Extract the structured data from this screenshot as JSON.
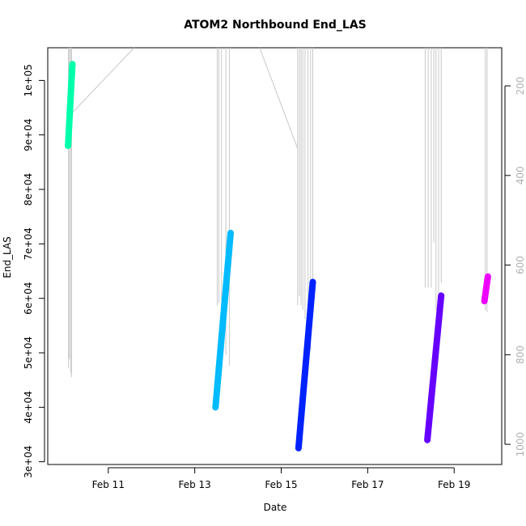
{
  "chart_data": {
    "type": "scatter",
    "title": "ATOM2 Northbound End_LAS",
    "xlabel": "Date",
    "ylabel": "End_LAS",
    "x_ticks": [
      "Feb 11",
      "Feb 13",
      "Feb 15",
      "Feb 17",
      "Feb 19"
    ],
    "x_tick_days": [
      11,
      13,
      15,
      17,
      19
    ],
    "xlim_days": [
      9.6,
      20.1
    ],
    "y_ticks": [
      "3e+04",
      "4e+04",
      "5e+04",
      "6e+04",
      "7e+04",
      "8e+04",
      "9e+04",
      "1e+05"
    ],
    "y_tick_values": [
      30000,
      40000,
      50000,
      60000,
      70000,
      80000,
      90000,
      100000
    ],
    "ylim": [
      29500,
      106000
    ],
    "y2_ticks": [
      "200",
      "400",
      "600",
      "800",
      "1000"
    ],
    "y2_tick_values": [
      200,
      400,
      600,
      800,
      1000
    ],
    "y2lim": [
      1045,
      115
    ],
    "y2_color": "#b0b0b0",
    "series": [
      {
        "color": "#00ffaa",
        "x_days": [
          10.07,
          10.17
        ],
        "y": [
          88000,
          103000
        ]
      },
      {
        "color": "#00bbff",
        "x_days": [
          13.48,
          13.83
        ],
        "y": [
          40000,
          72000
        ]
      },
      {
        "color": "#0022ff",
        "x_days": [
          15.4,
          15.73
        ],
        "y": [
          32500,
          63000
        ]
      },
      {
        "color": "#6600ff",
        "x_days": [
          18.38,
          18.7
        ],
        "y": [
          34000,
          60500
        ]
      },
      {
        "color": "#ee00ff",
        "x_days": [
          19.7,
          19.78
        ],
        "y": [
          59500,
          64000
        ]
      }
    ],
    "gray_series": {
      "color": "#c8c8c8",
      "axis": "y2",
      "spikes": [
        {
          "x_days": 10.08,
          "y2_low": 830
        },
        {
          "x_days": 10.1,
          "y2_low": 810
        },
        {
          "x_days": 10.13,
          "y2_low": 840
        },
        {
          "x_days": 10.15,
          "y2_low": 850
        },
        {
          "x_days": 13.52,
          "y2_low": 690
        },
        {
          "x_days": 13.56,
          "y2_low": 685
        },
        {
          "x_days": 13.62,
          "y2_low": 700
        },
        {
          "x_days": 13.72,
          "y2_low": 800
        },
        {
          "x_days": 13.8,
          "y2_low": 825
        },
        {
          "x_days": 15.38,
          "y2_low": 690
        },
        {
          "x_days": 15.42,
          "y2_low": 670
        },
        {
          "x_days": 15.46,
          "y2_low": 690
        },
        {
          "x_days": 15.5,
          "y2_low": 700
        },
        {
          "x_days": 15.55,
          "y2_low": 720
        },
        {
          "x_days": 15.62,
          "y2_low": 760
        },
        {
          "x_days": 15.68,
          "y2_low": 790
        },
        {
          "x_days": 15.73,
          "y2_low": 700
        },
        {
          "x_days": 18.33,
          "y2_low": 650
        },
        {
          "x_days": 18.4,
          "y2_low": 650
        },
        {
          "x_days": 18.47,
          "y2_low": 650
        },
        {
          "x_days": 18.53,
          "y2_low": 550
        },
        {
          "x_days": 18.58,
          "y2_low": 700
        },
        {
          "x_days": 18.64,
          "y2_low": 750
        },
        {
          "x_days": 18.7,
          "y2_low": 640
        },
        {
          "x_days": 19.72,
          "y2_low": 700
        },
        {
          "x_days": 19.76,
          "y2_low": 705
        }
      ],
      "connectors": [
        {
          "x_days": [
            10.17,
            11.6
          ],
          "y2": [
            260,
            115
          ]
        },
        {
          "x_days": [
            14.5,
            15.38
          ],
          "y2": [
            115,
            340
          ]
        }
      ]
    }
  }
}
